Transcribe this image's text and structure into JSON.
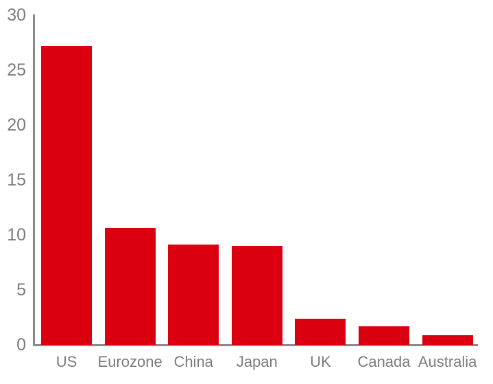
{
  "chart_data": {
    "type": "bar",
    "categories": [
      "US",
      "Eurozone",
      "China",
      "Japan",
      "UK",
      "Canada",
      "Australia"
    ],
    "values": [
      27.2,
      10.6,
      9.1,
      9.0,
      2.4,
      1.7,
      0.9
    ],
    "title": "",
    "xlabel": "",
    "ylabel": "",
    "ylim": [
      0,
      30
    ],
    "yticks": [
      0,
      5,
      10,
      15,
      20,
      25,
      30
    ],
    "grid": false,
    "legend": false,
    "bar_color": "#da0010",
    "axis_color": "#8a8a8a",
    "label_color": "#7b7b7b",
    "background_color": "#ffffff"
  }
}
